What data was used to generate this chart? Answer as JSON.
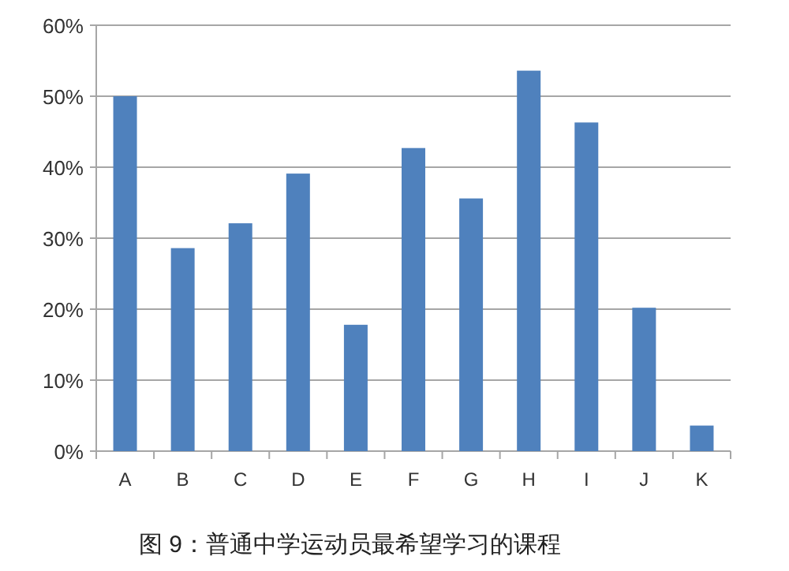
{
  "chart_data": {
    "type": "bar",
    "categories": [
      "A",
      "B",
      "C",
      "D",
      "E",
      "F",
      "G",
      "H",
      "I",
      "J",
      "K"
    ],
    "values": [
      50,
      28.6,
      32.1,
      39.1,
      17.8,
      42.7,
      35.6,
      53.6,
      46.3,
      20.2,
      3.6
    ],
    "color": "#4f81bd",
    "ylim": [
      0,
      60
    ],
    "yticks": [
      {
        "value": 0,
        "label": "0%"
      },
      {
        "value": 10,
        "label": "10%"
      },
      {
        "value": 20,
        "label": "20%"
      },
      {
        "value": 30,
        "label": "30%"
      },
      {
        "value": 40,
        "label": "40%"
      },
      {
        "value": 50,
        "label": "50%"
      },
      {
        "value": 60,
        "label": "60%"
      }
    ],
    "grid": "y",
    "annotations": [
      "图 9：普通中学运动员最希望学习的课程"
    ]
  }
}
